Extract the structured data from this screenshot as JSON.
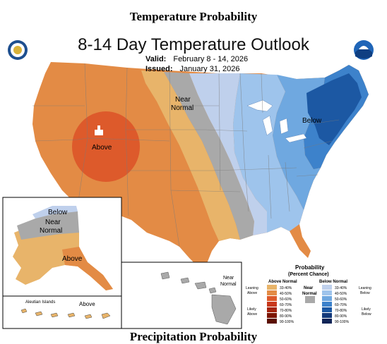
{
  "header": {
    "title": "Temperature Probability"
  },
  "outlook": {
    "title": "8-14 Day Temperature Outlook",
    "valid_label": "Valid:",
    "valid_value": "February 8 - 14, 2026",
    "issued_label": "Issued:",
    "issued_value": "January 31, 2026",
    "map_labels": {
      "near_normal_1": "Near",
      "near_normal_2": "Normal",
      "below": "Below",
      "above": "Above"
    },
    "alaska_labels": {
      "below": "Below",
      "near_1": "Near",
      "near_2": "Normal",
      "above": "Above"
    },
    "aleutian": {
      "name": "Aleutian Islands",
      "label": "Above"
    },
    "hawaii": {
      "near_1": "Near",
      "near_2": "Normal"
    }
  },
  "legend": {
    "title_1": "Probability",
    "title_2": "(Percent Chance)",
    "above_header": "Above Normal",
    "below_header": "Below Normal",
    "near_1": "Near",
    "near_2": "Normal",
    "leaning_above_1": "Leaning",
    "leaning_above_2": "Above",
    "likely_above_1": "Likely",
    "likely_above_2": "Above",
    "leaning_below_1": "Leaning",
    "leaning_below_2": "Below",
    "likely_below_1": "Likely",
    "likely_below_2": "Below",
    "ranges": [
      "33-40%",
      "40-50%",
      "50-60%",
      "60-70%",
      "70-80%",
      "80-90%",
      "90-100%"
    ],
    "above_colors": [
      "#e8b46a",
      "#e38b45",
      "#dd5a2b",
      "#c8381c",
      "#a5240e",
      "#7d1604",
      "#5a0d00"
    ],
    "below_colors": [
      "#bfd0ec",
      "#9ec4ec",
      "#6fa8e0",
      "#3d82cb",
      "#1c58a3",
      "#13397a",
      "#0e2457"
    ],
    "near_color": "#a9a9a9"
  },
  "colors": {
    "above_40_50": "#e38b45",
    "above_33_40": "#e8b46a",
    "above_50_60": "#dd5a2b",
    "near_normal": "#a9a9a9",
    "below_33_40": "#bfd0ec",
    "below_40_50": "#9ec4ec",
    "below_50_60": "#6fa8e0",
    "below_60_70": "#3d82cb",
    "below_70_80": "#1c58a3"
  },
  "footer": {
    "title": "Precipitation Probability"
  }
}
